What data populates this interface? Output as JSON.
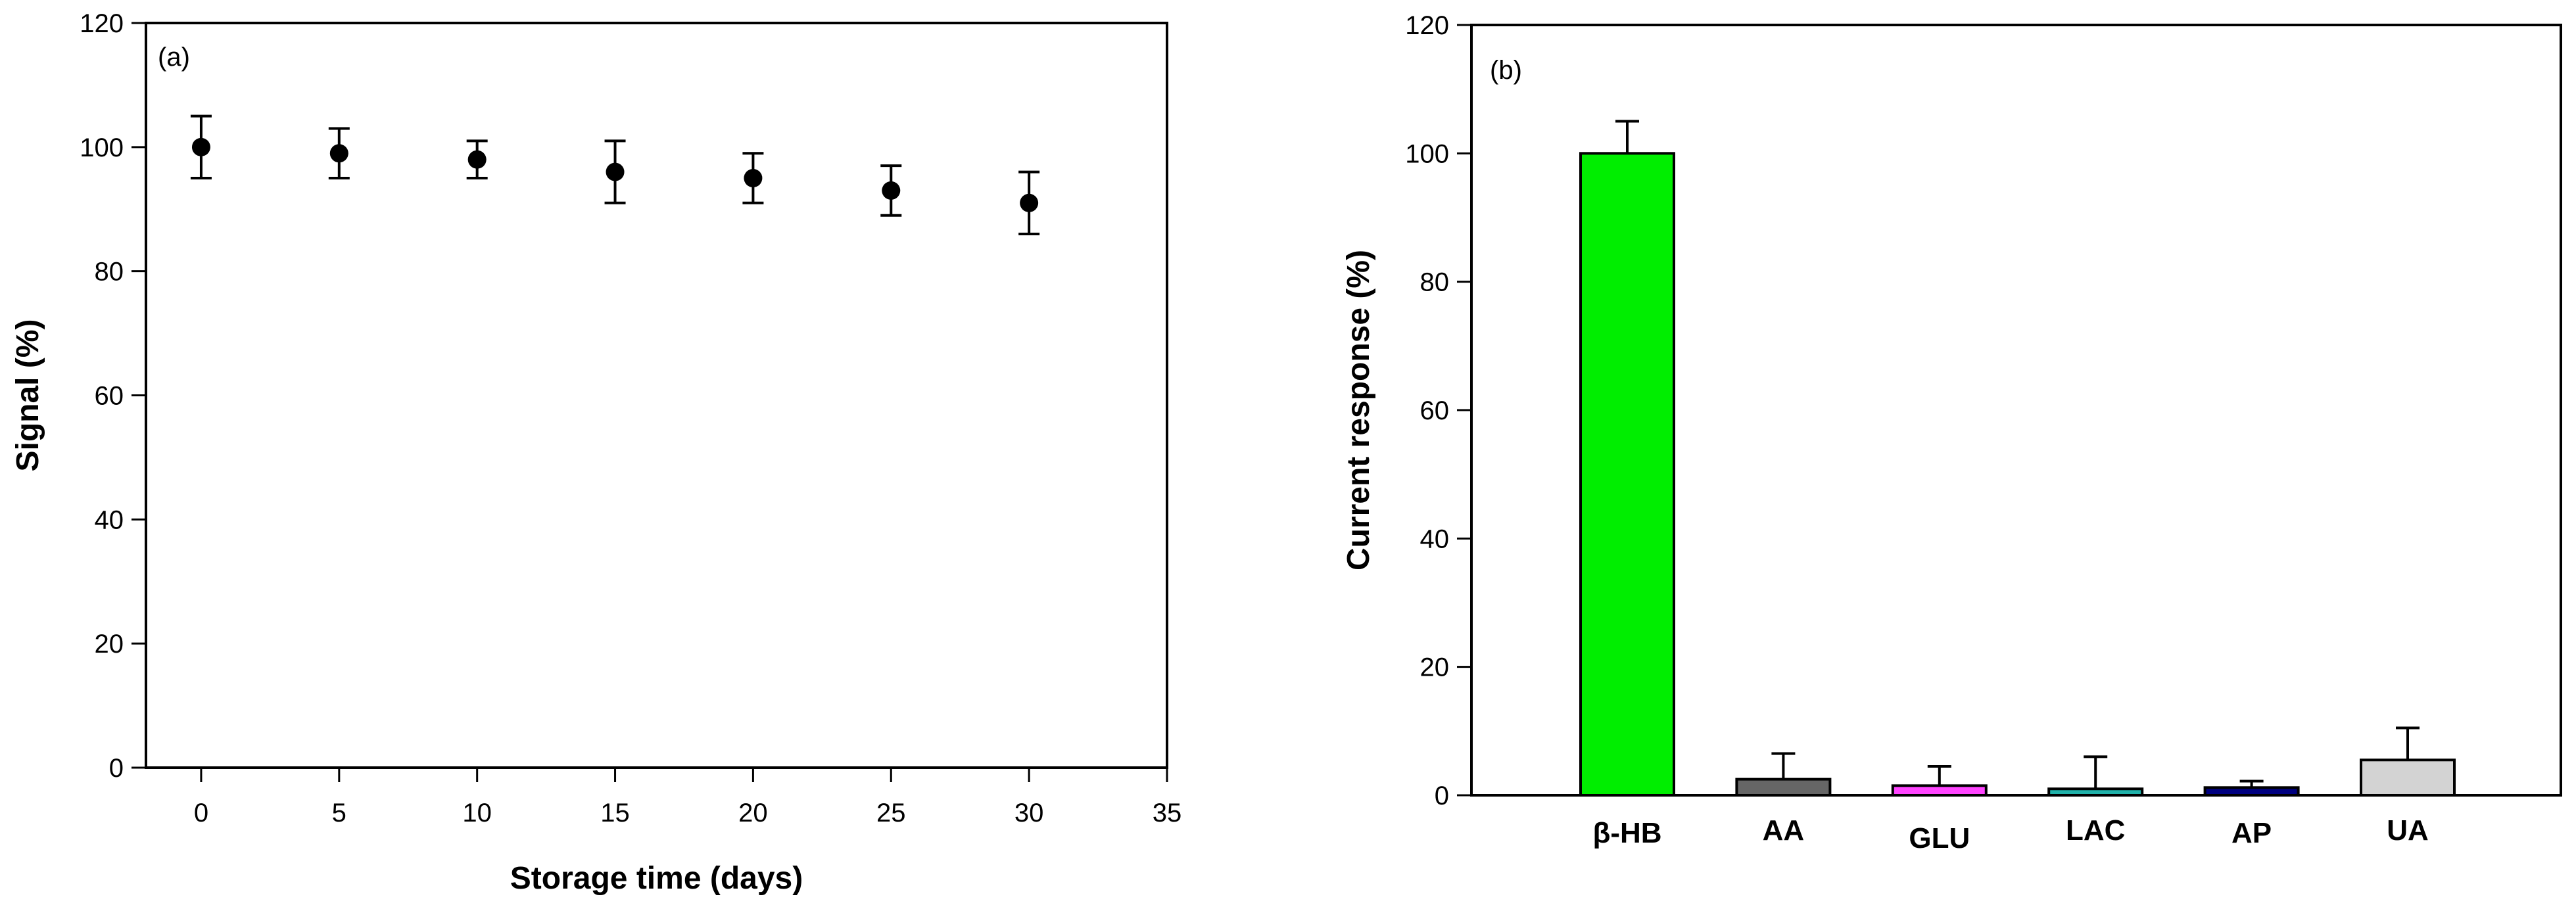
{
  "chart_data": [
    {
      "type": "scatter",
      "panel_label": "(a)",
      "xlabel": "Storage time (days)",
      "ylabel": "Signal (%)",
      "xlim": [
        -2,
        35
      ],
      "ylim": [
        0,
        120
      ],
      "xticks": [
        0,
        5,
        10,
        15,
        20,
        25,
        30,
        35
      ],
      "yticks": [
        0,
        20,
        40,
        60,
        80,
        100,
        120
      ],
      "grid": false,
      "series": [
        {
          "x": [
            0,
            5,
            10,
            15,
            20,
            25,
            30
          ],
          "y": [
            100,
            99,
            98,
            96,
            95,
            93,
            91
          ],
          "error": [
            5,
            4,
            3,
            5,
            4,
            4,
            5
          ]
        }
      ]
    },
    {
      "type": "bar",
      "panel_label": "(b)",
      "xlabel": "",
      "ylabel": "Current response (%)",
      "ylim": [
        0,
        120
      ],
      "yticks": [
        0,
        20,
        40,
        60,
        80,
        100,
        120
      ],
      "grid": false,
      "categories": [
        "β-HB",
        "AA",
        "GLU",
        "LAC",
        "AP",
        "UA"
      ],
      "values": [
        100,
        2.5,
        1.5,
        1.0,
        1.2,
        5.5
      ],
      "error": [
        5,
        4,
        3,
        5,
        1,
        5
      ],
      "colors": [
        "#00ee00",
        "#666666",
        "#ff44ff",
        "#20b2aa",
        "#000080",
        "#d3d3d3"
      ]
    }
  ]
}
